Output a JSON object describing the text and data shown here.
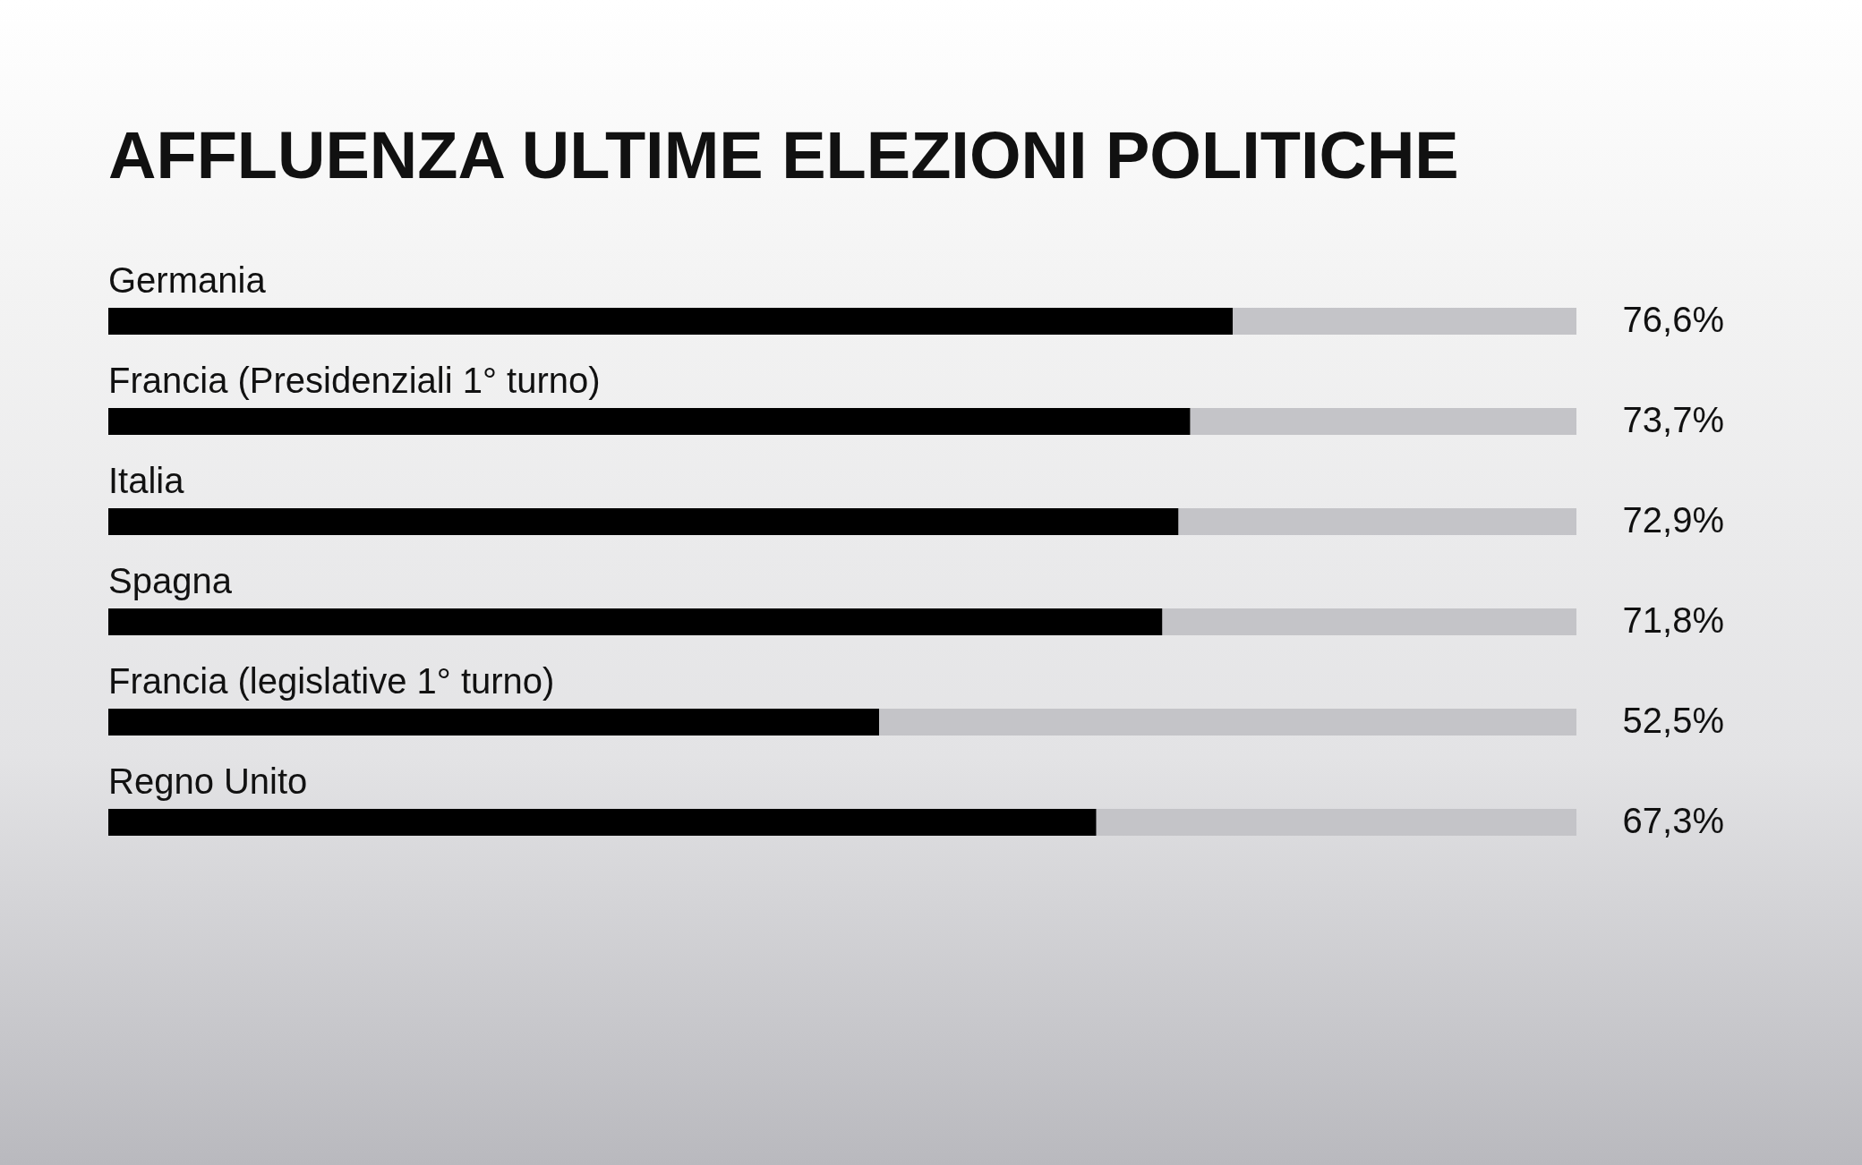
{
  "chart_data": {
    "type": "bar",
    "orientation": "horizontal",
    "stacked": true,
    "title": "AFFLUENZA ULTIME ELEZIONI POLITICHE",
    "categories": [
      "Germania",
      "Francia (Presidenziali 1° turno)",
      "Italia",
      "Spagna",
      "Francia  (legislative 1° turno)",
      "Regno Unito"
    ],
    "series": [
      {
        "color": "#000000",
        "values": [
          76.6,
          73.7,
          72.9,
          71.8,
          52.5,
          67.3
        ],
        "value_labels": [
          "76,6%",
          "73,7%",
          "72,9%",
          "71,8%",
          "52,5%",
          "67,3%"
        ]
      },
      {
        "color": "#c4c4c8",
        "values": [
          23.4,
          26.3,
          27.1,
          28.2,
          47.5,
          32.7
        ]
      }
    ],
    "xlim": [
      0,
      100
    ],
    "legend": false
  }
}
